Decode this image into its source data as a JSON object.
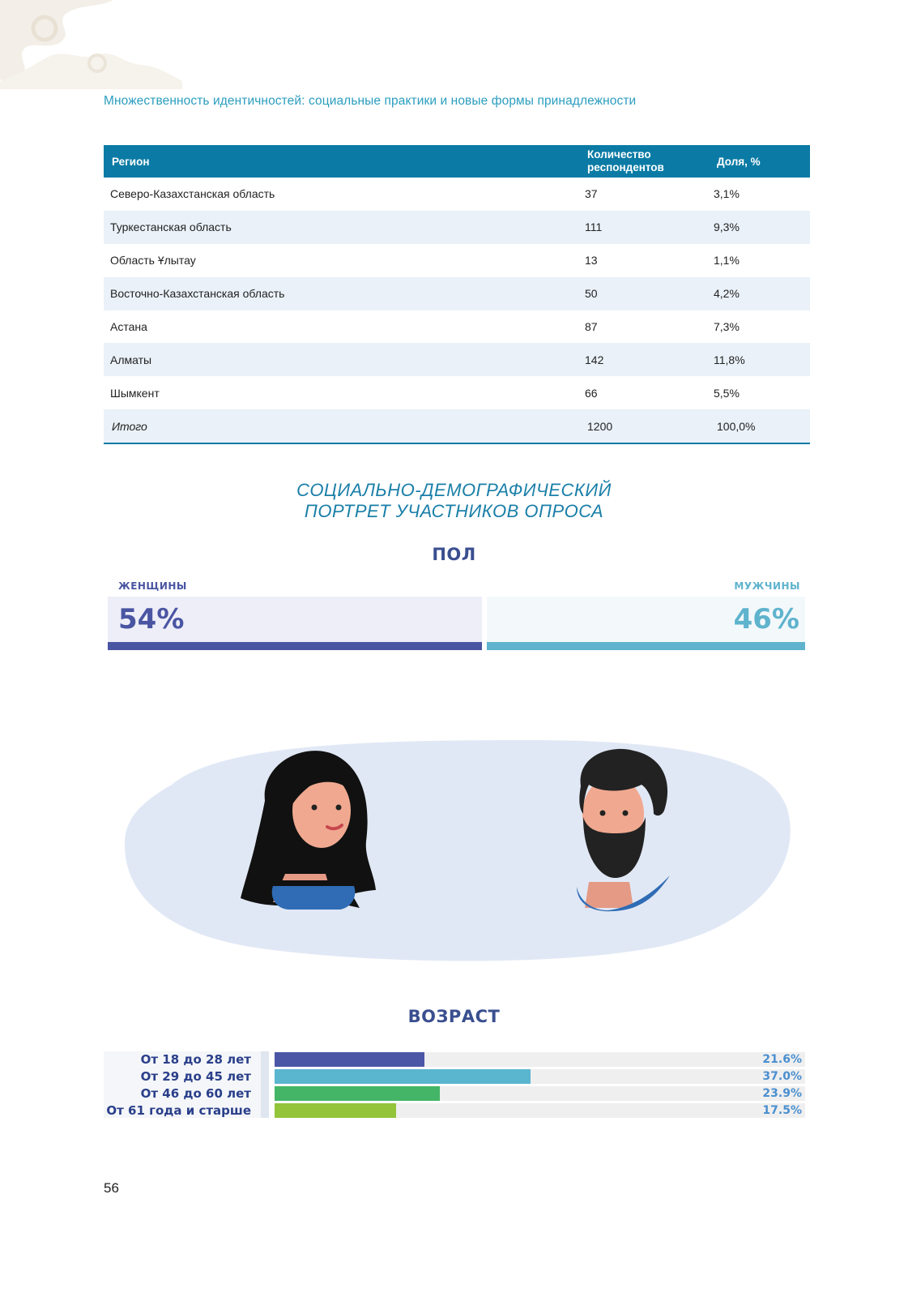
{
  "running_header": "Множественность идентичностей: социальные практики и новые формы принадлежности",
  "table": {
    "headers": [
      "Регион",
      "Количество респондентов",
      "Доля, %"
    ],
    "rows": [
      [
        "Северо-Казахстанская область",
        "37",
        "3,1%"
      ],
      [
        "Туркестанская область",
        "111",
        "9,3%"
      ],
      [
        "Область Ұлытау",
        "13",
        "1,1%"
      ],
      [
        "Восточно-Казахстанская область",
        "50",
        "4,2%"
      ],
      [
        "Астана",
        "87",
        "7,3%"
      ],
      [
        "Алматы",
        "142",
        "11,8%"
      ],
      [
        "Шымкент",
        "66",
        "5,5%"
      ]
    ],
    "total": [
      "Итого",
      "1200",
      "100,0%"
    ]
  },
  "section_title": [
    "СОЦИАЛЬНО-ДЕМОГРАФИЧЕСКИЙ",
    "ПОРТРЕТ УЧАСТНИКОВ ОПРОСА"
  ],
  "gender": {
    "title": "ПОЛ",
    "female": {
      "label": "ЖЕНЩИНЫ",
      "value": "54%",
      "share": 54,
      "color": "#4a55a2",
      "bg": "#eeeef8"
    },
    "male": {
      "label": "МУЖЧИНЫ",
      "value": "46%",
      "share": 46,
      "color": "#5fb3cd",
      "bg": "#f3f8fb"
    }
  },
  "age": {
    "title": "ВОЗРАСТ",
    "groups": [
      {
        "label": "От 18 до 28 лет",
        "value": "21.6%",
        "pct": 21.6,
        "color": "#4b56a6"
      },
      {
        "label": "От 29 до 45 лет",
        "value": "37.0%",
        "pct": 37.0,
        "color": "#5ab5cf"
      },
      {
        "label": "От 46 до 60 лет",
        "value": "23.9%",
        "pct": 23.9,
        "color": "#44b566"
      },
      {
        "label": "От 61 года и старше",
        "value": "17.5%",
        "pct": 17.5,
        "color": "#93c43a"
      }
    ]
  },
  "page_number": "56",
  "colors": {
    "accent": "#0b7ba5",
    "title": "#1a7fa8",
    "navy": "#3a4f8f"
  }
}
